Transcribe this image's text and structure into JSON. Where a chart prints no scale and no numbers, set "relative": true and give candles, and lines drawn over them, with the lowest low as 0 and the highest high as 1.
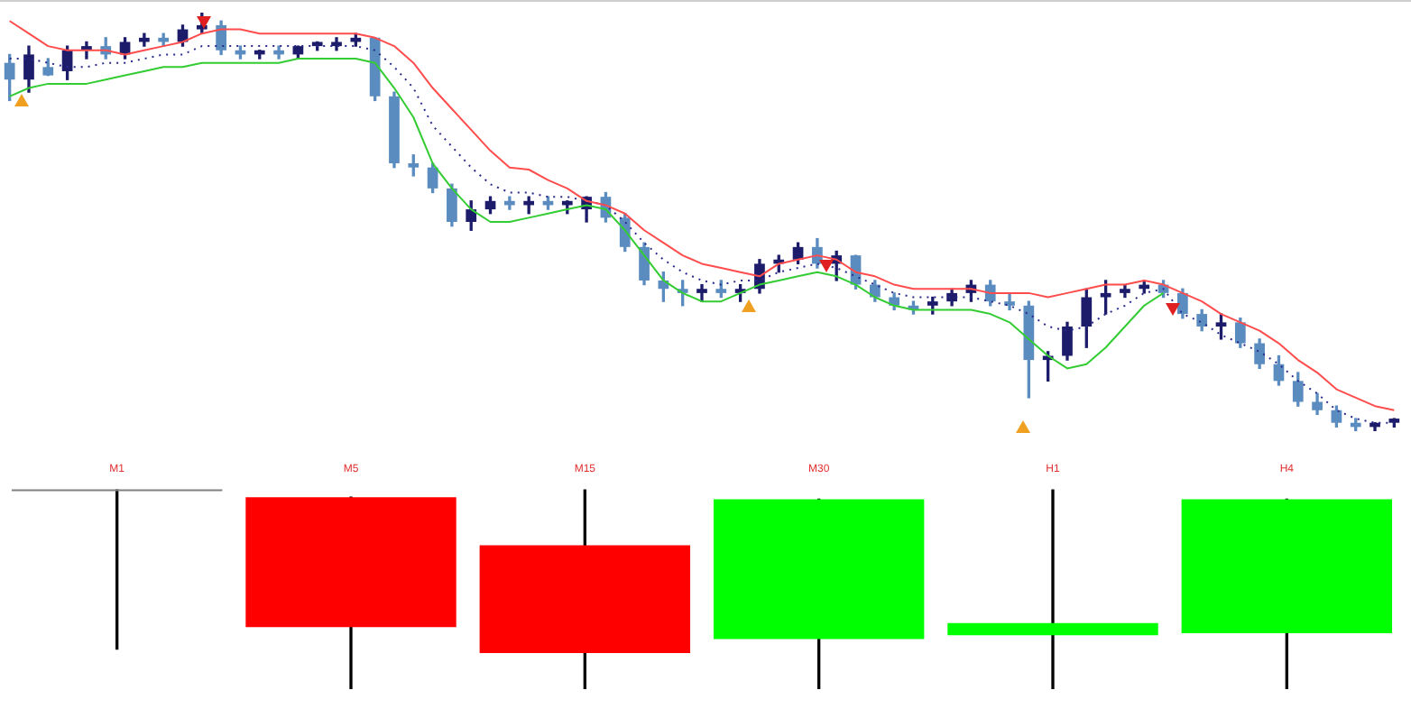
{
  "chart_data": [
    {
      "type": "candlestick",
      "relative": true,
      "categories": [
        null,
        null,
        null,
        null,
        null,
        null,
        null,
        null,
        null,
        null,
        null,
        null,
        null,
        null,
        null,
        null,
        null,
        null,
        null,
        null,
        null,
        null,
        null,
        null,
        null,
        null,
        null,
        null,
        null,
        null,
        null,
        null,
        null,
        null,
        null,
        null,
        null,
        null,
        null,
        null,
        null,
        null,
        null,
        null,
        null,
        null,
        null,
        null,
        null,
        null,
        null,
        null,
        null,
        null,
        null,
        null,
        null,
        null,
        null,
        null,
        null,
        null,
        null,
        null,
        null,
        null,
        null,
        null,
        null,
        null,
        null,
        null,
        null
      ],
      "ohlc": [
        [
          0.88,
          0.9,
          0.79,
          0.84
        ],
        [
          0.84,
          0.92,
          0.81,
          0.9
        ],
        [
          0.87,
          0.89,
          0.85,
          0.85
        ],
        [
          0.86,
          0.92,
          0.84,
          0.91
        ],
        [
          0.91,
          0.93,
          0.89,
          0.92
        ],
        [
          0.92,
          0.94,
          0.89,
          0.9
        ],
        [
          0.9,
          0.94,
          0.89,
          0.93
        ],
        [
          0.93,
          0.95,
          0.92,
          0.94
        ],
        [
          0.94,
          0.95,
          0.92,
          0.93
        ],
        [
          0.93,
          0.97,
          0.92,
          0.96
        ],
        [
          0.96,
          1.0,
          0.95,
          0.97
        ],
        [
          0.97,
          0.98,
          0.9,
          0.91
        ],
        [
          0.91,
          0.92,
          0.89,
          0.9
        ],
        [
          0.9,
          0.91,
          0.89,
          0.91
        ],
        [
          0.91,
          0.92,
          0.89,
          0.9
        ],
        [
          0.9,
          0.92,
          0.89,
          0.92
        ],
        [
          0.92,
          0.93,
          0.91,
          0.93
        ],
        [
          0.92,
          0.94,
          0.91,
          0.93
        ],
        [
          0.93,
          0.95,
          0.92,
          0.94
        ],
        [
          0.94,
          0.94,
          0.79,
          0.8
        ],
        [
          0.8,
          0.81,
          0.63,
          0.64
        ],
        [
          0.64,
          0.66,
          0.61,
          0.63
        ],
        [
          0.63,
          0.64,
          0.57,
          0.58
        ],
        [
          0.58,
          0.59,
          0.49,
          0.5
        ],
        [
          0.5,
          0.55,
          0.48,
          0.53
        ],
        [
          0.53,
          0.56,
          0.52,
          0.55
        ],
        [
          0.55,
          0.56,
          0.53,
          0.54
        ],
        [
          0.54,
          0.56,
          0.52,
          0.55
        ],
        [
          0.55,
          0.56,
          0.53,
          0.54
        ],
        [
          0.54,
          0.55,
          0.52,
          0.55
        ],
        [
          0.53,
          0.56,
          0.5,
          0.56
        ],
        [
          0.56,
          0.57,
          0.5,
          0.51
        ],
        [
          0.51,
          0.52,
          0.43,
          0.44
        ],
        [
          0.44,
          0.45,
          0.35,
          0.36
        ],
        [
          0.36,
          0.38,
          0.31,
          0.34
        ],
        [
          0.34,
          0.36,
          0.3,
          0.33
        ],
        [
          0.33,
          0.35,
          0.31,
          0.34
        ],
        [
          0.34,
          0.36,
          0.32,
          0.33
        ],
        [
          0.33,
          0.35,
          0.31,
          0.34
        ],
        [
          0.34,
          0.41,
          0.33,
          0.4
        ],
        [
          0.4,
          0.42,
          0.38,
          0.41
        ],
        [
          0.41,
          0.45,
          0.4,
          0.44
        ],
        [
          0.44,
          0.46,
          0.39,
          0.4
        ],
        [
          0.4,
          0.43,
          0.36,
          0.42
        ],
        [
          0.42,
          0.42,
          0.34,
          0.35
        ],
        [
          0.35,
          0.36,
          0.31,
          0.32
        ],
        [
          0.32,
          0.33,
          0.29,
          0.3
        ],
        [
          0.3,
          0.31,
          0.28,
          0.29
        ],
        [
          0.3,
          0.32,
          0.28,
          0.31
        ],
        [
          0.31,
          0.34,
          0.3,
          0.33
        ],
        [
          0.33,
          0.36,
          0.31,
          0.35
        ],
        [
          0.35,
          0.36,
          0.3,
          0.31
        ],
        [
          0.31,
          0.33,
          0.29,
          0.3
        ],
        [
          0.3,
          0.31,
          0.08,
          0.17
        ],
        [
          0.17,
          0.19,
          0.12,
          0.18
        ],
        [
          0.18,
          0.26,
          0.17,
          0.25
        ],
        [
          0.25,
          0.34,
          0.2,
          0.32
        ],
        [
          0.32,
          0.36,
          0.28,
          0.33
        ],
        [
          0.33,
          0.35,
          0.32,
          0.34
        ],
        [
          0.34,
          0.36,
          0.33,
          0.35
        ],
        [
          0.35,
          0.36,
          0.32,
          0.33
        ],
        [
          0.33,
          0.34,
          0.27,
          0.28
        ],
        [
          0.28,
          0.29,
          0.24,
          0.25
        ],
        [
          0.25,
          0.28,
          0.22,
          0.26
        ],
        [
          0.26,
          0.27,
          0.2,
          0.21
        ],
        [
          0.21,
          0.22,
          0.15,
          0.16
        ],
        [
          0.16,
          0.18,
          0.11,
          0.12
        ],
        [
          0.12,
          0.14,
          0.06,
          0.07
        ],
        [
          0.07,
          0.09,
          0.04,
          0.05
        ],
        [
          0.05,
          0.06,
          0.01,
          0.02
        ],
        [
          0.02,
          0.03,
          0,
          0.01
        ],
        [
          0.01,
          0.02,
          0,
          0.02
        ],
        [
          0.02,
          0.03,
          0.01,
          0.03
        ]
      ],
      "colors": [
        "#5b8cc0",
        "#1c1c6b",
        "#5b8cc0",
        "#1c1c6b",
        "#1c1c6b",
        "#5b8cc0",
        "#1c1c6b",
        "#1c1c6b",
        "#5b8cc0",
        "#1c1c6b",
        "#1c1c6b",
        "#5b8cc0",
        "#5b8cc0",
        "#1c1c6b",
        "#5b8cc0",
        "#1c1c6b",
        "#1c1c6b",
        "#1c1c6b",
        "#1c1c6b",
        "#5b8cc0",
        "#5b8cc0",
        "#5b8cc0",
        "#5b8cc0",
        "#5b8cc0",
        "#1c1c6b",
        "#1c1c6b",
        "#5b8cc0",
        "#1c1c6b",
        "#5b8cc0",
        "#1c1c6b",
        "#1c1c6b",
        "#5b8cc0",
        "#5b8cc0",
        "#5b8cc0",
        "#5b8cc0",
        "#5b8cc0",
        "#1c1c6b",
        "#5b8cc0",
        "#1c1c6b",
        "#1c1c6b",
        "#1c1c6b",
        "#1c1c6b",
        "#5b8cc0",
        "#1c1c6b",
        "#5b8cc0",
        "#5b8cc0",
        "#5b8cc0",
        "#5b8cc0",
        "#1c1c6b",
        "#1c1c6b",
        "#1c1c6b",
        "#5b8cc0",
        "#5b8cc0",
        "#5b8cc0",
        "#1c1c6b",
        "#1c1c6b",
        "#1c1c6b",
        "#1c1c6b",
        "#1c1c6b",
        "#1c1c6b",
        "#5b8cc0",
        "#5b8cc0",
        "#5b8cc0",
        "#1c1c6b",
        "#5b8cc0",
        "#5b8cc0",
        "#5b8cc0",
        "#5b8cc0",
        "#5b8cc0",
        "#5b8cc0",
        "#5b8cc0",
        "#1c1c6b",
        "#1c1c6b"
      ],
      "series": [
        {
          "type": "line",
          "color": "#ff4d4d",
          "line_style": "solid",
          "values": [
            0.98,
            0.95,
            0.92,
            0.91,
            0.91,
            0.91,
            0.9,
            0.91,
            0.92,
            0.93,
            0.95,
            0.96,
            0.96,
            0.95,
            0.95,
            0.95,
            0.95,
            0.95,
            0.95,
            0.94,
            0.92,
            0.88,
            0.82,
            0.77,
            0.72,
            0.67,
            0.63,
            0.625,
            0.6,
            0.58,
            0.55,
            0.54,
            0.52,
            0.48,
            0.45,
            0.42,
            0.4,
            0.39,
            0.38,
            0.37,
            0.4,
            0.41,
            0.42,
            0.41,
            0.38,
            0.37,
            0.35,
            0.34,
            0.34,
            0.34,
            0.34,
            0.33,
            0.33,
            0.33,
            0.32,
            0.33,
            0.34,
            0.35,
            0.35,
            0.36,
            0.35,
            0.33,
            0.31,
            0.28,
            0.26,
            0.24,
            0.21,
            0.17,
            0.14,
            0.1,
            0.08,
            0.06,
            0.05
          ]
        },
        {
          "type": "line",
          "color": "#2a2a8c",
          "line_style": "dotted",
          "values": [
            0.89,
            0.89,
            0.88,
            0.87,
            0.87,
            0.88,
            0.88,
            0.89,
            0.9,
            0.9,
            0.92,
            0.92,
            0.92,
            0.92,
            0.92,
            0.92,
            0.92,
            0.92,
            0.92,
            0.91,
            0.87,
            0.82,
            0.73,
            0.68,
            0.63,
            0.59,
            0.57,
            0.57,
            0.56,
            0.56,
            0.55,
            0.54,
            0.5,
            0.45,
            0.41,
            0.38,
            0.36,
            0.35,
            0.36,
            0.36,
            0.38,
            0.39,
            0.4,
            0.39,
            0.37,
            0.35,
            0.33,
            0.32,
            0.32,
            0.32,
            0.32,
            0.31,
            0.3,
            0.28,
            0.25,
            0.24,
            0.25,
            0.28,
            0.3,
            0.33,
            0.34,
            0.28,
            0.26,
            0.23,
            0.21,
            0.19,
            0.16,
            0.12,
            0.09,
            0.05,
            0.03,
            0.02,
            0.02
          ]
        },
        {
          "type": "line",
          "color": "#33cc33",
          "line_style": "solid",
          "values": [
            0.8,
            0.82,
            0.83,
            0.83,
            0.83,
            0.84,
            0.85,
            0.86,
            0.87,
            0.87,
            0.88,
            0.88,
            0.88,
            0.88,
            0.88,
            0.89,
            0.89,
            0.89,
            0.89,
            0.88,
            0.82,
            0.75,
            0.64,
            0.58,
            0.53,
            0.5,
            0.5,
            0.51,
            0.52,
            0.53,
            0.54,
            0.53,
            0.48,
            0.42,
            0.36,
            0.33,
            0.31,
            0.31,
            0.33,
            0.35,
            0.36,
            0.37,
            0.38,
            0.37,
            0.35,
            0.32,
            0.3,
            0.29,
            0.29,
            0.29,
            0.29,
            0.28,
            0.26,
            0.22,
            0.18,
            0.15,
            0.16,
            0.2,
            0.25,
            0.3,
            0.33,
            null,
            null,
            null,
            null,
            null,
            null,
            null,
            null,
            null,
            null,
            null,
            null
          ]
        }
      ]
    },
    {
      "type": "candlestick",
      "relative": true,
      "categories": [
        "M1",
        "M5",
        "M15",
        "M30",
        "H1",
        "H4"
      ],
      "ohlc": [
        [
          1,
          1,
          0.2,
          0.99
        ],
        [
          0.96,
          0.96,
          0,
          0.31
        ],
        [
          0.72,
          1,
          0,
          0.18
        ],
        [
          0.25,
          0.95,
          0,
          0.95
        ],
        [
          0.27,
          1,
          0,
          0.33
        ],
        [
          0.28,
          0.95,
          0,
          0.95
        ]
      ],
      "colors": [
        "#808080",
        "#ff0000",
        "#ff0000",
        "#00ff00",
        "#00ff00",
        "#00ff00"
      ]
    }
  ]
}
